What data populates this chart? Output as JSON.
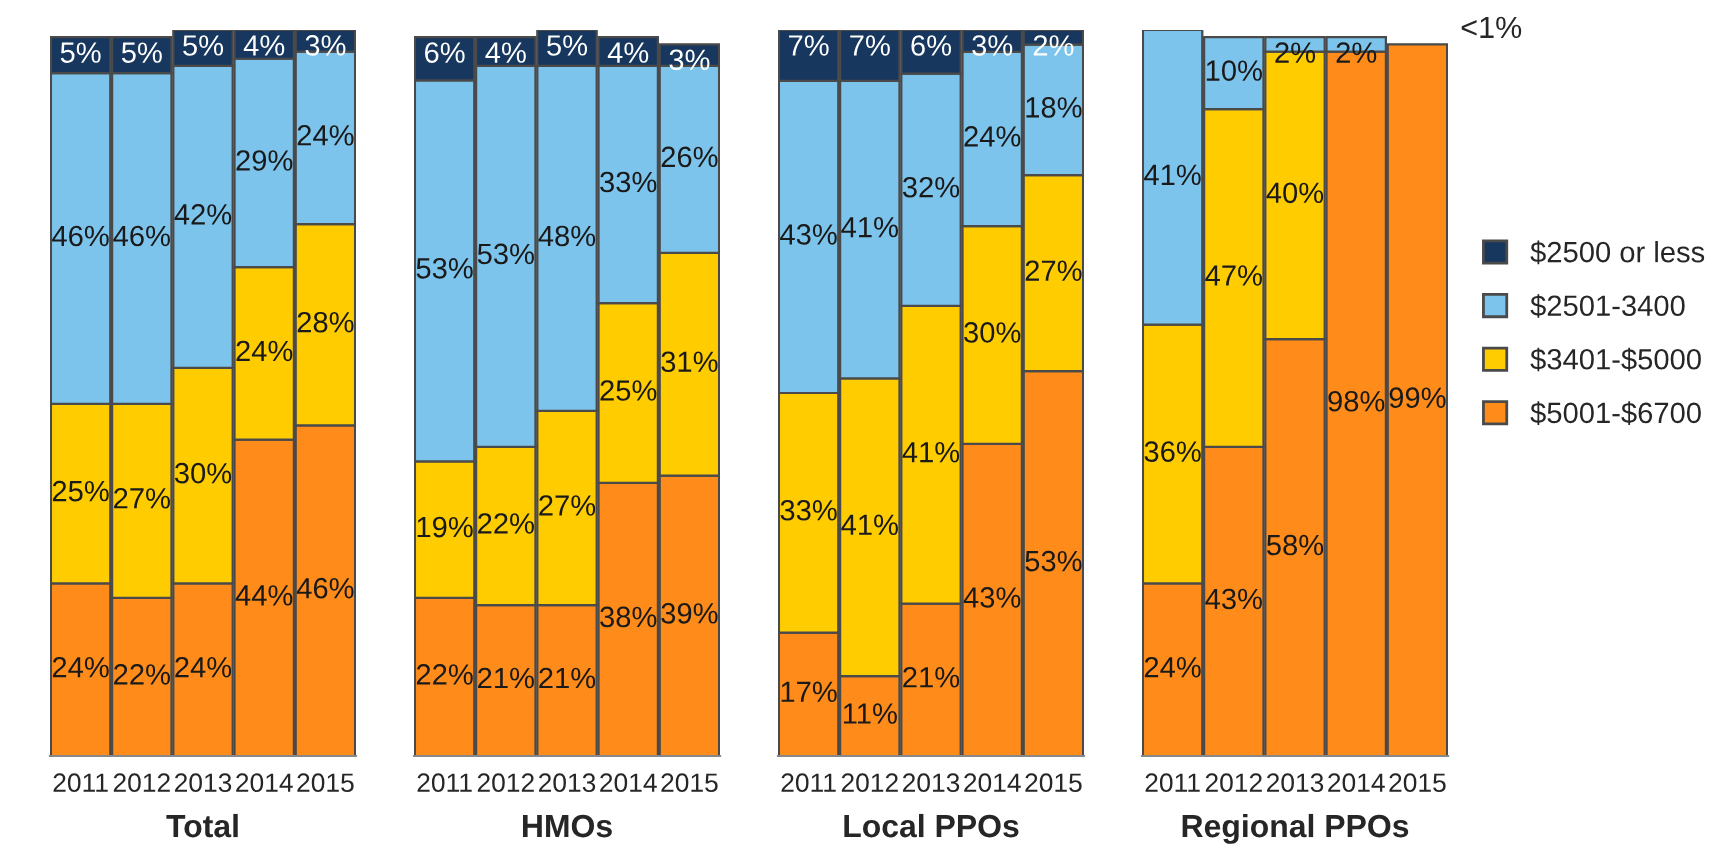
{
  "chart_data": [
    {
      "type": "bar",
      "stacked": true,
      "xlabel": "Total",
      "categories": [
        "2011",
        "2012",
        "2013",
        "2014",
        "2015"
      ],
      "grid": false,
      "series": [
        {
          "color": "#ff8c1a",
          "values": [
            24,
            22,
            24,
            44,
            46
          ],
          "value_labels": [
            "24%",
            "22%",
            "24%",
            "44%",
            "46%"
          ]
        },
        {
          "color": "#ffcc00",
          "values": [
            25,
            27,
            30,
            24,
            28
          ],
          "value_labels": [
            "25%",
            "27%",
            "30%",
            "24%",
            "28%"
          ]
        },
        {
          "color": "#7dc4ec",
          "values": [
            46,
            46,
            42,
            29,
            24
          ],
          "value_labels": [
            "46%",
            "46%",
            "42%",
            "29%",
            "24%"
          ]
        },
        {
          "color": "#17375e",
          "values": [
            5,
            5,
            5,
            4,
            3
          ],
          "value_labels": [
            "5%",
            "5%",
            "5%",
            "4%",
            "3%"
          ]
        }
      ]
    },
    {
      "type": "bar",
      "stacked": true,
      "xlabel": "HMOs",
      "categories": [
        "2011",
        "2012",
        "2013",
        "2014",
        "2015"
      ],
      "grid": false,
      "series": [
        {
          "color": "#ff8c1a",
          "values": [
            22,
            21,
            21,
            38,
            39
          ],
          "value_labels": [
            "22%",
            "21%",
            "21%",
            "38%",
            "39%"
          ]
        },
        {
          "color": "#ffcc00",
          "values": [
            19,
            22,
            27,
            25,
            31
          ],
          "value_labels": [
            "19%",
            "22%",
            "27%",
            "25%",
            "31%"
          ]
        },
        {
          "color": "#7dc4ec",
          "values": [
            53,
            53,
            48,
            33,
            26
          ],
          "value_labels": [
            "53%",
            "53%",
            "48%",
            "33%",
            "26%"
          ]
        },
        {
          "color": "#17375e",
          "values": [
            6,
            4,
            5,
            4,
            3
          ],
          "value_labels": [
            "6%",
            "4%",
            "5%",
            "4%",
            "3%"
          ]
        }
      ]
    },
    {
      "type": "bar",
      "stacked": true,
      "xlabel": "Local PPOs",
      "categories": [
        "2011",
        "2012",
        "2013",
        "2014",
        "2015"
      ],
      "grid": false,
      "series": [
        {
          "color": "#ff8c1a",
          "values": [
            17,
            11,
            21,
            43,
            53
          ],
          "value_labels": [
            "17%",
            "11%",
            "21%",
            "43%",
            "53%"
          ]
        },
        {
          "color": "#ffcc00",
          "values": [
            33,
            41,
            41,
            30,
            27
          ],
          "value_labels": [
            "33%",
            "41%",
            "41%",
            "30%",
            "27%"
          ]
        },
        {
          "color": "#7dc4ec",
          "values": [
            43,
            41,
            32,
            24,
            18
          ],
          "value_labels": [
            "43%",
            "41%",
            "32%",
            "24%",
            "18%"
          ]
        },
        {
          "color": "#17375e",
          "values": [
            7,
            7,
            6,
            3,
            2
          ],
          "value_labels": [
            "7%",
            "7%",
            "6%",
            "3%",
            "2%"
          ]
        }
      ]
    },
    {
      "type": "bar",
      "stacked": true,
      "xlabel": "Regional PPOs",
      "categories": [
        "2011",
        "2012",
        "2013",
        "2014",
        "2015"
      ],
      "legend": "right",
      "grid": false,
      "annotations": [
        "<1%"
      ],
      "series": [
        {
          "name": "$5001-$6700",
          "color": "#ff8c1a",
          "values": [
            24,
            43,
            58,
            98,
            99
          ],
          "value_labels": [
            "24%",
            "43%",
            "58%",
            "98%",
            "99%"
          ]
        },
        {
          "name": "$3401-$5000",
          "color": "#ffcc00",
          "values": [
            36,
            47,
            40,
            null,
            null
          ],
          "value_labels": [
            "36%",
            "47%",
            "40%",
            null,
            null
          ]
        },
        {
          "name": "$2501-3400",
          "color": "#7dc4ec",
          "values": [
            41,
            10,
            2,
            2,
            null
          ],
          "value_labels": [
            "41%",
            "10%",
            "2%",
            "2%",
            null
          ]
        },
        {
          "name": "$2500 or less",
          "color": "#17375e",
          "values": [
            null,
            null,
            null,
            null,
            null
          ],
          "value_labels": [
            null,
            null,
            null,
            null,
            null
          ]
        }
      ]
    }
  ]
}
